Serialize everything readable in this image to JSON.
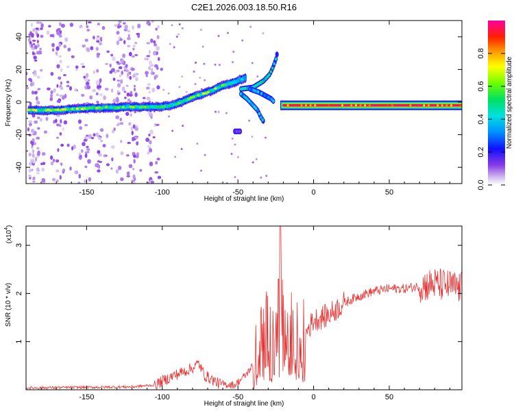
{
  "title": "C2E1.2026.003.18.50.R16",
  "chart_data": [
    {
      "type": "heatmap",
      "title": "C2E1.2026.003.18.50.R16",
      "xlabel": "Height of straight line (km)",
      "ylabel": "Frequency (Hz)",
      "xlim": [
        -190,
        98
      ],
      "ylim": [
        -50,
        50
      ],
      "xticks": [
        -150,
        -100,
        -50,
        0,
        50
      ],
      "yticks": [
        -40,
        -20,
        0,
        20,
        40
      ],
      "colorbar": {
        "label": "Normalized spectral amplitude",
        "range": [
          0,
          1
        ],
        "ticks": [
          0.0,
          0.2,
          0.4,
          0.6,
          0.8
        ],
        "tick_labels": [
          "0.0",
          "0.2",
          "0.4",
          "0.6",
          "0.8"
        ],
        "colormap": [
          "#ffffff",
          "#b48cf0",
          "#7a1fe0",
          "#1010ff",
          "#00a0ff",
          "#00e8e8",
          "#00e060",
          "#60ff00",
          "#ffff00",
          "#ff9000",
          "#ff2000",
          "#ff00a0"
        ]
      },
      "main_track": {
        "description_points": [
          {
            "x": -188,
            "f": -5,
            "a": 0.62
          },
          {
            "x": -170,
            "f": -5,
            "a": 0.68
          },
          {
            "x": -155,
            "f": -4,
            "a": 0.6
          },
          {
            "x": -140,
            "f": -3.5,
            "a": 0.55
          },
          {
            "x": -120,
            "f": -3,
            "a": 0.55
          },
          {
            "x": -100,
            "f": -3,
            "a": 0.5
          },
          {
            "x": -90,
            "f": -1,
            "a": 0.5
          },
          {
            "x": -80,
            "f": 3,
            "a": 0.55
          },
          {
            "x": -70,
            "f": 6,
            "a": 0.6
          },
          {
            "x": -60,
            "f": 10,
            "a": 0.55
          },
          {
            "x": -50,
            "f": 13,
            "a": 0.45
          },
          {
            "x": -45,
            "f": 15,
            "a": 0.35
          }
        ],
        "flat_segment": {
          "x_start": -22,
          "x_end": 98,
          "f": -2,
          "a": 0.95
        }
      },
      "branches": [
        {
          "points": [
            {
              "x": -48,
              "f": 8
            },
            {
              "x": -40,
              "f": 9
            },
            {
              "x": -33,
              "f": 13
            },
            {
              "x": -29,
              "f": 17
            },
            {
              "x": -27,
              "f": 21
            },
            {
              "x": -25,
              "f": 26
            },
            {
              "x": -24,
              "f": 30
            }
          ],
          "a": 0.4
        },
        {
          "points": [
            {
              "x": -48,
              "f": 5
            },
            {
              "x": -44,
              "f": 2
            },
            {
              "x": -40,
              "f": -2
            },
            {
              "x": -37,
              "f": -5
            },
            {
              "x": -35,
              "f": -9
            },
            {
              "x": -33,
              "f": -12
            }
          ],
          "a": 0.35
        },
        {
          "points": [
            {
              "x": -42,
              "f": 8
            },
            {
              "x": -36,
              "f": 6
            },
            {
              "x": -32,
              "f": 4
            },
            {
              "x": -28,
              "f": 2
            },
            {
              "x": -26,
              "f": 0
            }
          ],
          "a": 0.3
        },
        {
          "points": [
            {
              "x": -52,
              "f": -18
            },
            {
              "x": -48,
              "f": -18
            }
          ],
          "a": 0.15
        }
      ]
    },
    {
      "type": "line",
      "xlabel": "Height of straight line (km)",
      "ylabel": "SNR (10 * v/v)",
      "scale_label": "(x10",
      "scale_exponent": "4",
      "xlim": [
        -190,
        98
      ],
      "ylim": [
        0,
        3.4
      ],
      "xticks": [
        -150,
        -100,
        -50,
        0,
        50
      ],
      "yticks": [
        1,
        2,
        3
      ],
      "series_color": "#e83030",
      "envelope": [
        {
          "x": -190,
          "y": 0.04
        },
        {
          "x": -150,
          "y": 0.05
        },
        {
          "x": -120,
          "y": 0.06
        },
        {
          "x": -105,
          "y": 0.1
        },
        {
          "x": -92,
          "y": 0.3
        },
        {
          "x": -80,
          "y": 0.45
        },
        {
          "x": -76,
          "y": 0.55
        },
        {
          "x": -72,
          "y": 0.3
        },
        {
          "x": -62,
          "y": 0.12
        },
        {
          "x": -52,
          "y": 0.1
        },
        {
          "x": -45,
          "y": 0.3
        },
        {
          "x": -38,
          "y": 0.6
        },
        {
          "x": -33,
          "y": 1.2
        },
        {
          "x": -30,
          "y": 1.3
        },
        {
          "x": -26,
          "y": 1.5
        },
        {
          "x": -23,
          "y": 2.2
        },
        {
          "x": -22,
          "y": 3.4
        },
        {
          "x": -20,
          "y": 1.2
        },
        {
          "x": -15,
          "y": 1.5
        },
        {
          "x": -10,
          "y": 1.1
        },
        {
          "x": -5,
          "y": 1.2
        },
        {
          "x": 0,
          "y": 1.45
        },
        {
          "x": 10,
          "y": 1.55
        },
        {
          "x": 20,
          "y": 1.8
        },
        {
          "x": 30,
          "y": 1.95
        },
        {
          "x": 40,
          "y": 2.05
        },
        {
          "x": 50,
          "y": 2.1
        },
        {
          "x": 60,
          "y": 2.1
        },
        {
          "x": 70,
          "y": 2.15
        },
        {
          "x": 80,
          "y": 2.2
        },
        {
          "x": 90,
          "y": 2.15
        },
        {
          "x": 98,
          "y": 2.1
        }
      ],
      "noise_regions": [
        {
          "x_start": -190,
          "x_end": -105,
          "amp": 0.03
        },
        {
          "x_start": -105,
          "x_end": -60,
          "amp": 0.12
        },
        {
          "x_start": -60,
          "x_end": -40,
          "amp": 0.08
        },
        {
          "x_start": -40,
          "x_end": -5,
          "amp": 0.9
        },
        {
          "x_start": -5,
          "x_end": 20,
          "amp": 0.25
        },
        {
          "x_start": 20,
          "x_end": 70,
          "amp": 0.1
        },
        {
          "x_start": 70,
          "x_end": 98,
          "amp": 0.35
        }
      ]
    }
  ]
}
